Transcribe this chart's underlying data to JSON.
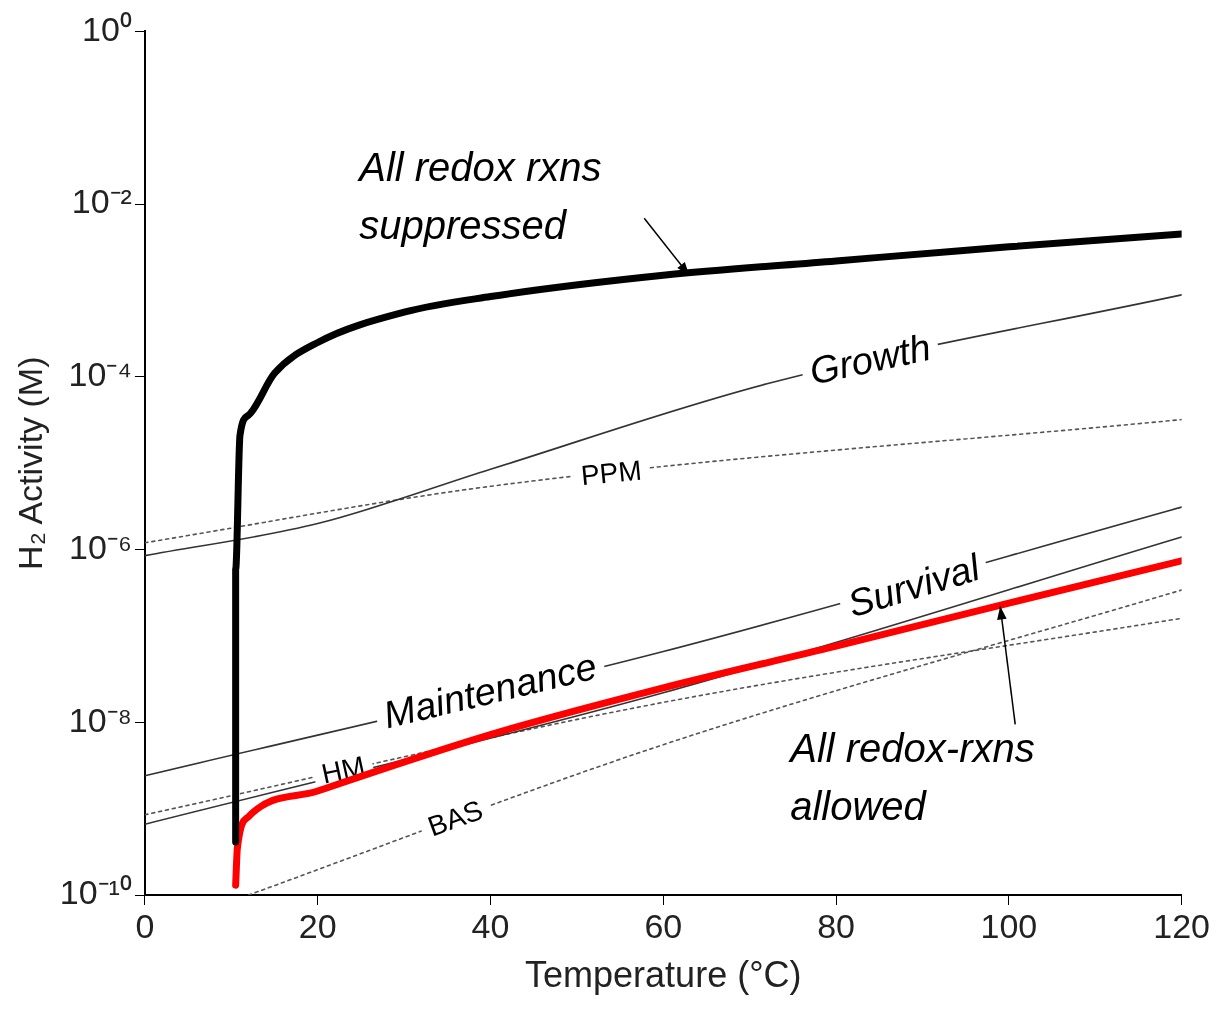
{
  "chart_data": {
    "type": "line",
    "xlabel": "Temperature (°C)",
    "ylabel": "H₂ Activity (M)",
    "log": "y",
    "grid": false,
    "legend": false,
    "marker": "none",
    "xlim": [
      0,
      120
    ],
    "xticks": [
      0,
      20,
      40,
      60,
      80,
      100,
      120
    ],
    "ylim": [
      1e-10,
      1
    ],
    "yticks": [
      {
        "value": 1,
        "label": "10⁰"
      },
      {
        "value": 0.01,
        "label": "10⁻²"
      },
      {
        "value": 0.0001,
        "label": "10⁻⁴"
      },
      {
        "value": 1e-06,
        "label": "10⁻⁶"
      },
      {
        "value": 1e-08,
        "label": "10⁻⁸"
      },
      {
        "value": 1e-10,
        "label": "10⁻¹⁰"
      }
    ],
    "series": [
      {
        "color": "#000000",
        "line_style": "solid",
        "x": [
          10.5,
          10.5,
          11,
          12,
          15,
          20,
          30,
          40,
          60,
          80,
          100,
          120
        ],
        "values": [
          4.1e-10,
          5.9e-07,
          2.1e-05,
          3.6e-05,
          0.00011,
          0.00025,
          0.00056,
          0.00085,
          0.0015,
          0.0022,
          0.0032,
          0.0045
        ]
      },
      {
        "color": "#ff0000",
        "line_style": "solid",
        "x": [
          10.5,
          10.7,
          12,
          20,
          40,
          60,
          80,
          100,
          120
        ],
        "values": [
          1.3e-10,
          3.5e-10,
          8.1e-10,
          1.6e-09,
          7.2e-09,
          2.5e-08,
          7.6e-08,
          2.4e-07,
          7.4e-07
        ]
      },
      {
        "name": "Growth",
        "color": "#333333",
        "line_style": "solid",
        "x": [
          0,
          20,
          40,
          72,
          120
        ],
        "values": [
          8.5e-07,
          2e-06,
          8.5e-06,
          8.3e-05,
          0.00089
        ]
      },
      {
        "name": "PPM",
        "color": "#555555",
        "line_style": "dotted",
        "x": [
          0,
          40,
          120
        ],
        "values": [
          1.2e-06,
          5.4e-06,
          3.2e-05
        ]
      },
      {
        "name": "Maintenance",
        "color": "#333333",
        "line_style": "solid",
        "x": [
          0,
          60,
          120
        ],
        "values": [
          2.4e-09,
          6.6e-08,
          3.1e-06
        ]
      },
      {
        "name": "Survival",
        "color": "#333333",
        "line_style": "solid",
        "x": [
          0,
          60,
          120
        ],
        "values": [
          6.6e-10,
          2.2e-08,
          1.4e-06
        ]
      },
      {
        "name": "HM",
        "color": "#555555",
        "line_style": "dotted",
        "x": [
          0,
          60,
          120
        ],
        "values": [
          8.5e-10,
          1.7e-08,
          1.6e-07
        ]
      },
      {
        "name": "BAS",
        "color": "#555555",
        "line_style": "dotted",
        "x": [
          12,
          60,
          120
        ],
        "values": [
          1e-10,
          5.5e-09,
          3.4e-07
        ]
      }
    ],
    "annotations": [
      {
        "text": "All redox rxns suppressed",
        "x": 63,
        "y": 0.0015
      },
      {
        "text": "All redox-rxns allowed",
        "x": 99,
        "y": 2.2e-07
      }
    ]
  }
}
